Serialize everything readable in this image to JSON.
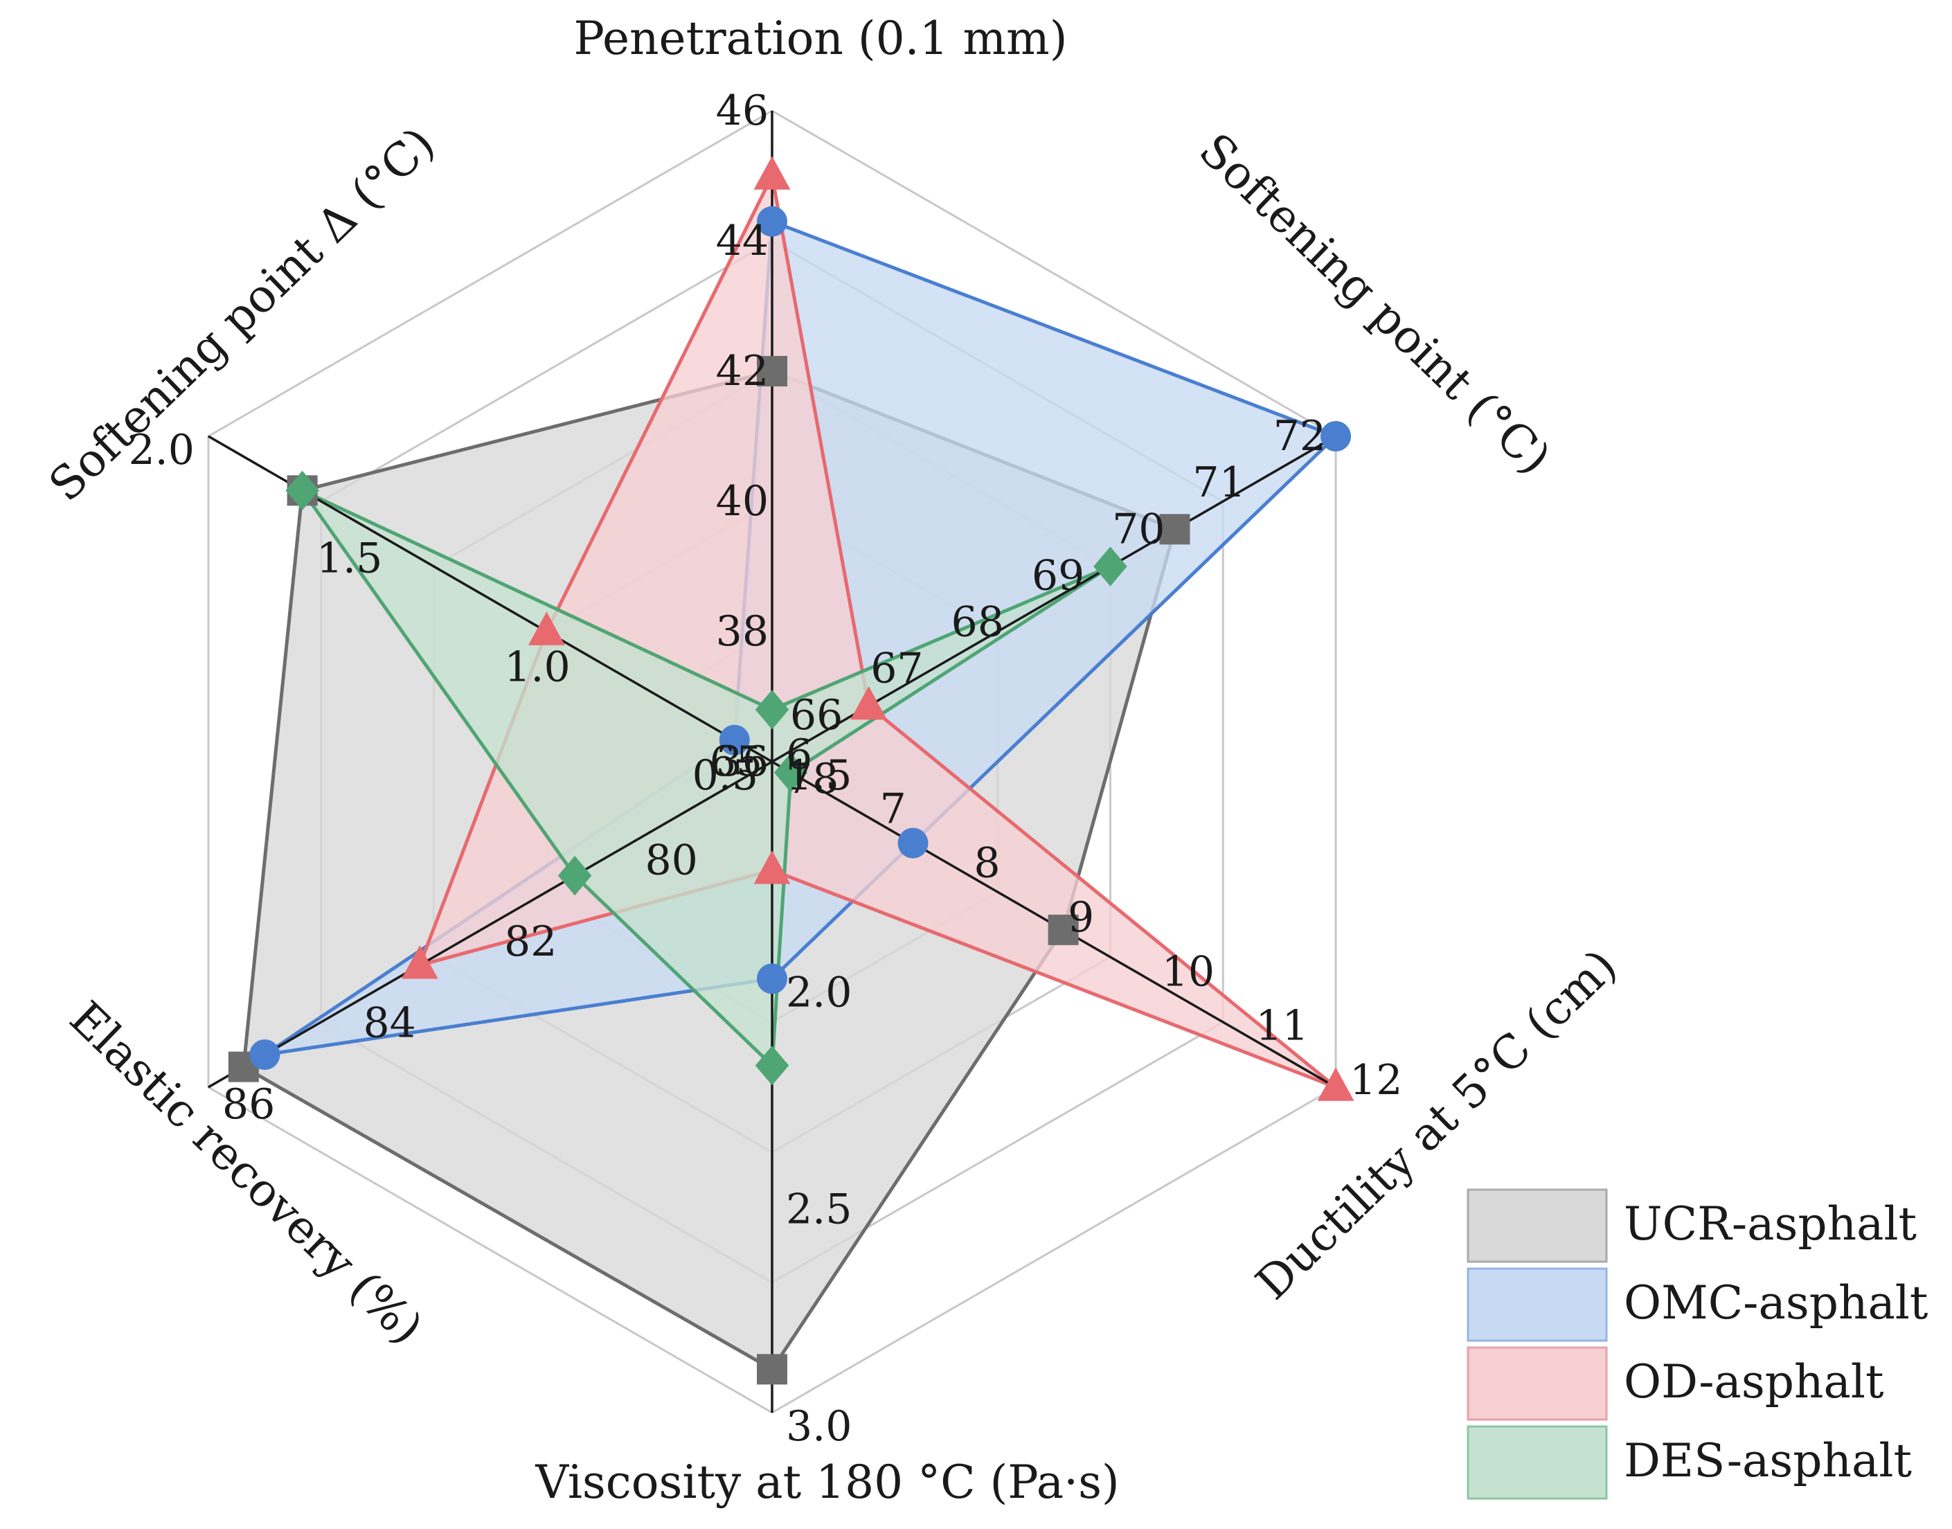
{
  "chart_data": {
    "type": "radar",
    "axes": [
      {
        "label": "Penetration (0.1 mm)",
        "ticks": [
          "36",
          "38",
          "40",
          "42",
          "44",
          "46"
        ],
        "range": [
          36,
          46
        ]
      },
      {
        "label": "Softening point (°C)",
        "ticks": [
          "65",
          "66",
          "67",
          "68",
          "69",
          "70",
          "71",
          "72"
        ],
        "range": [
          65,
          72
        ]
      },
      {
        "label": "Ductility at 5°C (cm)",
        "ticks": [
          "6",
          "7",
          "8",
          "9",
          "10",
          "11",
          "12"
        ],
        "range": [
          6,
          12
        ]
      },
      {
        "label": "Viscosity at 180 °C (Pa·s)",
        "ticks": [
          "1.5",
          "2.0",
          "2.5",
          "3.0"
        ],
        "range": [
          1.5,
          3.0
        ]
      },
      {
        "label": "Elastic recovery (%)",
        "ticks": [
          "78",
          "80",
          "82",
          "84",
          "86"
        ],
        "range": [
          78,
          86
        ]
      },
      {
        "label": "Softening point Δ (°C)",
        "ticks": [
          "0.5",
          "1.0",
          "1.5",
          "2.0"
        ],
        "range": [
          0.5,
          2.0
        ]
      }
    ],
    "series": [
      {
        "name": "UCR-asphalt",
        "marker": "square",
        "color": "#6d6d6d",
        "fill": "#d9d9d9",
        "values": [
          42.0,
          70.0,
          9.1,
          2.9,
          85.5,
          1.75
        ]
      },
      {
        "name": "OMC-asphalt",
        "marker": "circle",
        "color": "#4a7fd0",
        "fill": "#c8daf3",
        "values": [
          44.3,
          72.0,
          7.5,
          2.0,
          85.2,
          0.6
        ]
      },
      {
        "name": "OD-asphalt",
        "marker": "triangle",
        "color": "#e8696e",
        "fill": "#f6cfd2",
        "values": [
          45.0,
          66.2,
          12.0,
          1.75,
          83.0,
          1.1
        ]
      },
      {
        "name": "DES-asphalt",
        "marker": "diamond",
        "color": "#4fa574",
        "fill": "#c4e2cf",
        "values": [
          36.8,
          69.2,
          6.2,
          2.2,
          80.8,
          1.75
        ]
      }
    ],
    "legend_position": "bottom-right"
  }
}
